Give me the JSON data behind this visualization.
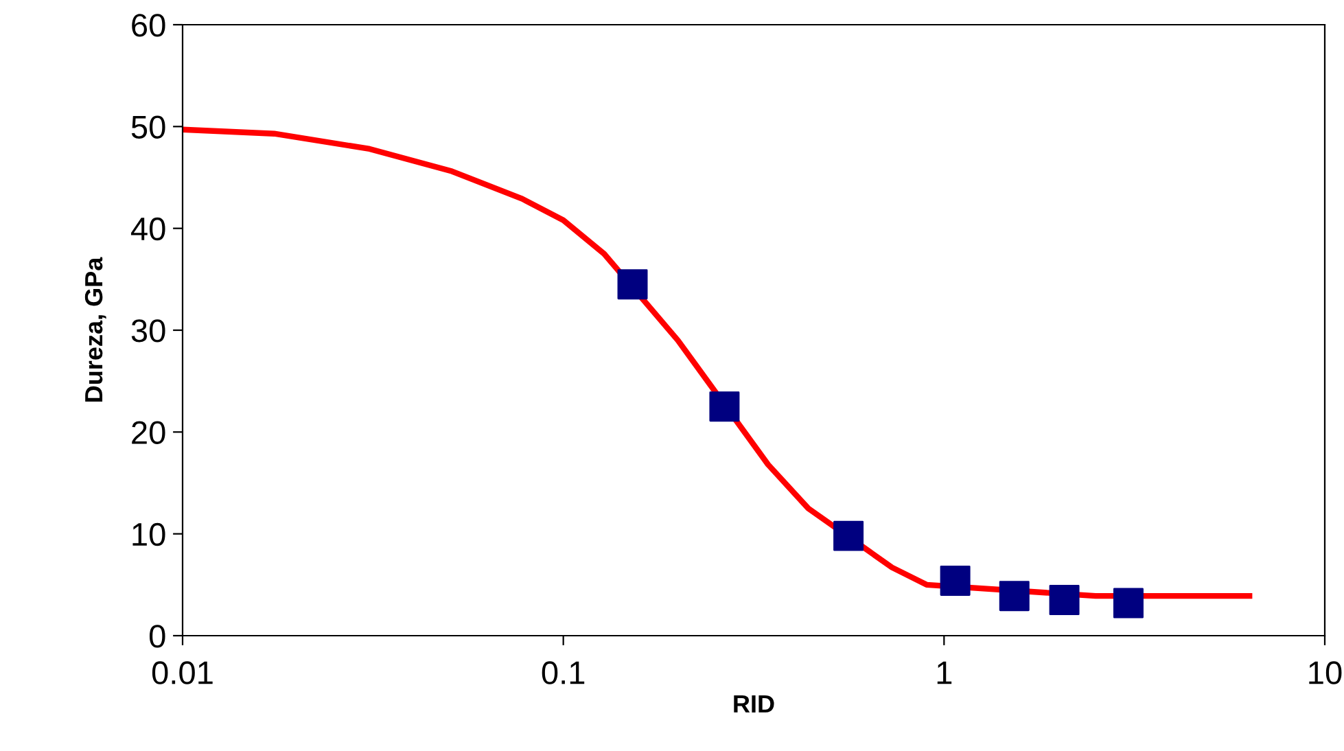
{
  "chart_data": {
    "type": "scatter",
    "xlabel": "RID",
    "ylabel": "Dureza, GPa",
    "log": "x",
    "xlim": [
      0.01,
      10
    ],
    "xticks": [
      {
        "value": 0.01,
        "label": "0.01"
      },
      {
        "value": 0.1,
        "label": "0.1"
      },
      {
        "value": 1,
        "label": "1"
      },
      {
        "value": 10,
        "label": "10"
      }
    ],
    "ylim": [
      0,
      60
    ],
    "yticks": [
      0,
      10,
      20,
      30,
      40,
      50,
      60
    ],
    "grid": false,
    "legend": false,
    "series": [
      {
        "type": "line",
        "color": "#ff0000",
        "marker": "none",
        "line_style": "solid",
        "x": [
          0.01,
          0.0174,
          0.031,
          0.051,
          0.078,
          0.1,
          0.128,
          0.2,
          0.345,
          0.44,
          0.73,
          0.9,
          2.5,
          6.34
        ],
        "values": [
          49.7,
          49.3,
          47.8,
          45.6,
          42.9,
          40.8,
          37.5,
          29,
          16.8,
          12.5,
          6.7,
          5.0,
          3.9,
          3.9
        ]
      },
      {
        "color": "#000080",
        "marker": "square",
        "x": [
          0.152,
          0.265,
          0.561,
          1.07,
          1.53,
          2.07,
          3.05
        ],
        "values": [
          34.5,
          22.5,
          9.8,
          5.4,
          3.9,
          3.5,
          3.2
        ]
      }
    ]
  }
}
